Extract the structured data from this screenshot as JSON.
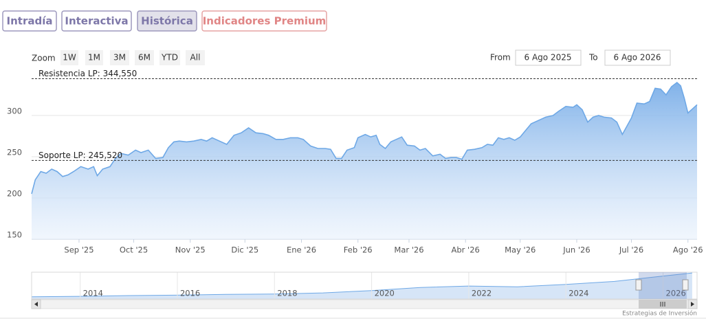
{
  "ui": {
    "tabs": [
      "Intradía",
      "Interactiva",
      "Histórica",
      "Indicadores Premium"
    ],
    "zoom_label": "Zoom",
    "zoom_buttons": [
      "1W",
      "1M",
      "3M",
      "6M",
      "YTD",
      "All"
    ],
    "from_label": "From",
    "from_value": "6 Ago 2025",
    "to_label": "To",
    "to_value": "6 Ago 2026",
    "credits": "Estrategias de Inversión"
  },
  "chart_data": [
    {
      "type": "area",
      "color": "#6ea8e6",
      "x": [
        "2025-08-06",
        "2025-08-08",
        "2025-08-11",
        "2025-08-14",
        "2025-08-17",
        "2025-08-20",
        "2025-08-23",
        "2025-08-26",
        "2025-08-29",
        "2025-09-02",
        "2025-09-06",
        "2025-09-09",
        "2025-09-11",
        "2025-09-14",
        "2025-09-18",
        "2025-09-21",
        "2025-09-24",
        "2025-09-28",
        "2025-10-02",
        "2025-10-05",
        "2025-10-09",
        "2025-10-13",
        "2025-10-17",
        "2025-10-20",
        "2025-10-23",
        "2025-10-26",
        "2025-10-30",
        "2025-11-03",
        "2025-11-07",
        "2025-11-10",
        "2025-11-13",
        "2025-11-17",
        "2025-11-21",
        "2025-11-25",
        "2025-11-29",
        "2025-12-03",
        "2025-12-07",
        "2025-12-11",
        "2025-12-14",
        "2025-12-18",
        "2025-12-22",
        "2025-12-26",
        "2025-12-30",
        "2026-01-02",
        "2026-01-06",
        "2026-01-10",
        "2026-01-14",
        "2026-01-17",
        "2026-01-20",
        "2026-01-23",
        "2026-01-26",
        "2026-01-30",
        "2026-02-01",
        "2026-02-05",
        "2026-02-08",
        "2026-02-11",
        "2026-02-13",
        "2026-02-16",
        "2026-02-19",
        "2026-02-22",
        "2026-02-25",
        "2026-02-28",
        "2026-03-04",
        "2026-03-07",
        "2026-03-10",
        "2026-03-14",
        "2026-03-18",
        "2026-03-21",
        "2026-03-24",
        "2026-03-27",
        "2026-03-30",
        "2026-04-02",
        "2026-04-06",
        "2026-04-10",
        "2026-04-13",
        "2026-04-16",
        "2026-04-19",
        "2026-04-22",
        "2026-04-25",
        "2026-04-28",
        "2026-05-01",
        "2026-05-04",
        "2026-05-07",
        "2026-05-11",
        "2026-05-15",
        "2026-05-19",
        "2026-05-22",
        "2026-05-26",
        "2026-05-30",
        "2026-06-01",
        "2026-06-04",
        "2026-06-07",
        "2026-06-10",
        "2026-06-13",
        "2026-06-16",
        "2026-06-20",
        "2026-06-23",
        "2026-06-26",
        "2026-06-28",
        "2026-07-01",
        "2026-07-04",
        "2026-07-08",
        "2026-07-11",
        "2026-07-14",
        "2026-07-17",
        "2026-07-20",
        "2026-07-23",
        "2026-07-26",
        "2026-07-28",
        "2026-07-30",
        "2026-08-01",
        "2026-08-04",
        "2026-08-06"
      ],
      "values": [
        205,
        222,
        232,
        230,
        235,
        232,
        226,
        228,
        232,
        238,
        235,
        238,
        227,
        235,
        238,
        248,
        254,
        252,
        258,
        255,
        258,
        248,
        249,
        261,
        268,
        269,
        268,
        269,
        271,
        269,
        273,
        269,
        265,
        276,
        279,
        285,
        279,
        278,
        276,
        271,
        271,
        273,
        273,
        271,
        263,
        260,
        260,
        259,
        248,
        248,
        258,
        261,
        273,
        277,
        274,
        276,
        265,
        260,
        268,
        271,
        274,
        264,
        263,
        258,
        260,
        251,
        253,
        248,
        249,
        249,
        247,
        258,
        259,
        261,
        265,
        264,
        273,
        271,
        273,
        270,
        274,
        282,
        290,
        294,
        298,
        300,
        305,
        311,
        310,
        313,
        307,
        292,
        298,
        300,
        298,
        297,
        292,
        277,
        285,
        297,
        315,
        314,
        317,
        333,
        332,
        325,
        335,
        340,
        336,
        321,
        303,
        309,
        313
      ],
      "xlim": [
        "2025-08-06",
        "2026-08-06"
      ],
      "xticks": [
        {
          "value": "2025-09-01",
          "label": "Sep '25"
        },
        {
          "value": "2025-10-01",
          "label": "Oct '25"
        },
        {
          "value": "2025-11-01",
          "label": "Nov '25"
        },
        {
          "value": "2025-12-01",
          "label": "Dic '25"
        },
        {
          "value": "2026-01-01",
          "label": "Ene '26"
        },
        {
          "value": "2026-02-01",
          "label": "Feb '26"
        },
        {
          "value": "2026-03-01",
          "label": "Mar '26"
        },
        {
          "value": "2026-04-01",
          "label": "Abr '26"
        },
        {
          "value": "2026-05-01",
          "label": "May '26"
        },
        {
          "value": "2026-06-01",
          "label": "Jun '26"
        },
        {
          "value": "2026-07-01",
          "label": "Jul '26"
        },
        {
          "value": "2026-08-01",
          "label": "Ago '26"
        }
      ],
      "ylim": [
        150,
        350
      ],
      "yticks": [
        150,
        200,
        250,
        300
      ],
      "grid": true,
      "plot_lines": [
        {
          "value": 344.55,
          "label": "Resistencia LP: 344,550"
        },
        {
          "value": 245.52,
          "label": "Soporte LP: 245,520"
        }
      ]
    },
    {
      "type": "area",
      "color": "#6ea8e6",
      "x": [
        2013,
        2014,
        2015,
        2016,
        2017,
        2018,
        2019,
        2020,
        2021,
        2022,
        2023,
        2024,
        2025,
        2026,
        2026.6
      ],
      "values": [
        30,
        35,
        45,
        50,
        60,
        65,
        80,
        110,
        150,
        170,
        160,
        190,
        230,
        300,
        340
      ],
      "xlim": [
        2013,
        2026.7
      ],
      "ylim": [
        0,
        350
      ],
      "xticks": [
        2014,
        2016,
        2018,
        2020,
        2022,
        2024,
        2026
      ]
    }
  ]
}
